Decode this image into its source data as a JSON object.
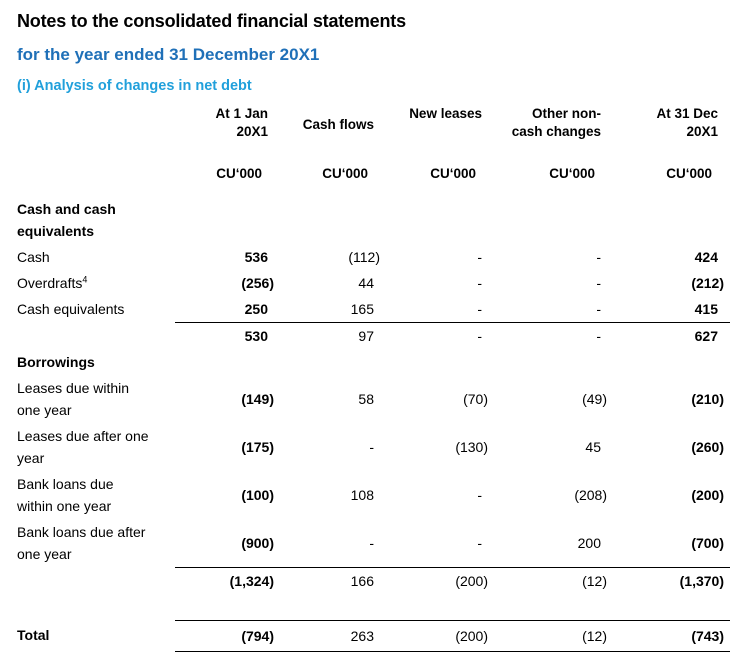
{
  "page": {
    "title": "Notes to the consolidated financial statements",
    "subtitle": "for the year ended 31 December 20X1",
    "section_heading": "(i) Analysis of changes in net debt"
  },
  "colors": {
    "subtitle_blue": "#1f70b8",
    "section_heading_blue": "#21a0db",
    "text": "#000000",
    "rule": "#000000"
  },
  "table": {
    "columns": [
      {
        "label": "At 1 Jan\n20X1",
        "units": "CU‘000"
      },
      {
        "label": "Cash flows",
        "units": "CU‘000"
      },
      {
        "label": "New leases",
        "units": "CU‘000"
      },
      {
        "label": "Other non-\ncash changes",
        "units": "CU‘000"
      },
      {
        "label": "At 31 Dec\n20X1",
        "units": "CU‘000"
      }
    ],
    "rows": [
      {
        "type": "section",
        "label": "Cash and cash\nequivalents"
      },
      {
        "type": "data",
        "label": "Cash",
        "values": [
          "536",
          "(112)",
          "-",
          "-",
          "424"
        ]
      },
      {
        "type": "data",
        "label": "Overdrafts",
        "sup": "4",
        "values": [
          "(256)",
          "44",
          "-",
          "-",
          "(212)"
        ]
      },
      {
        "type": "data",
        "label": "Cash equivalents",
        "values": [
          "250",
          "165",
          "-",
          "-",
          "415"
        ]
      },
      {
        "type": "subtotal",
        "label": "",
        "values": [
          "530",
          "97",
          "-",
          "-",
          "627"
        ]
      },
      {
        "type": "section",
        "label": "Borrowings"
      },
      {
        "type": "data",
        "label": "Leases due within\none year",
        "values": [
          "(149)",
          "58",
          "(70)",
          "(49)",
          "(210)"
        ]
      },
      {
        "type": "data",
        "label": "Leases due after one\nyear",
        "values": [
          "(175)",
          "-",
          "(130)",
          "45",
          "(260)"
        ]
      },
      {
        "type": "data",
        "label": "Bank loans due\nwithin one year",
        "values": [
          "(100)",
          "108",
          "-",
          "(208)",
          "(200)"
        ]
      },
      {
        "type": "data",
        "label": "Bank loans due after\none year",
        "values": [
          "(900)",
          "-",
          "-",
          "200",
          "(700)"
        ]
      },
      {
        "type": "subtotal",
        "label": "",
        "values": [
          "(1,324)",
          "166",
          "(200)",
          "(12)",
          "(1,370)"
        ]
      },
      {
        "type": "total",
        "label": "Total",
        "values": [
          "(794)",
          "263",
          "(200)",
          "(12)",
          "(743)"
        ]
      }
    ]
  }
}
